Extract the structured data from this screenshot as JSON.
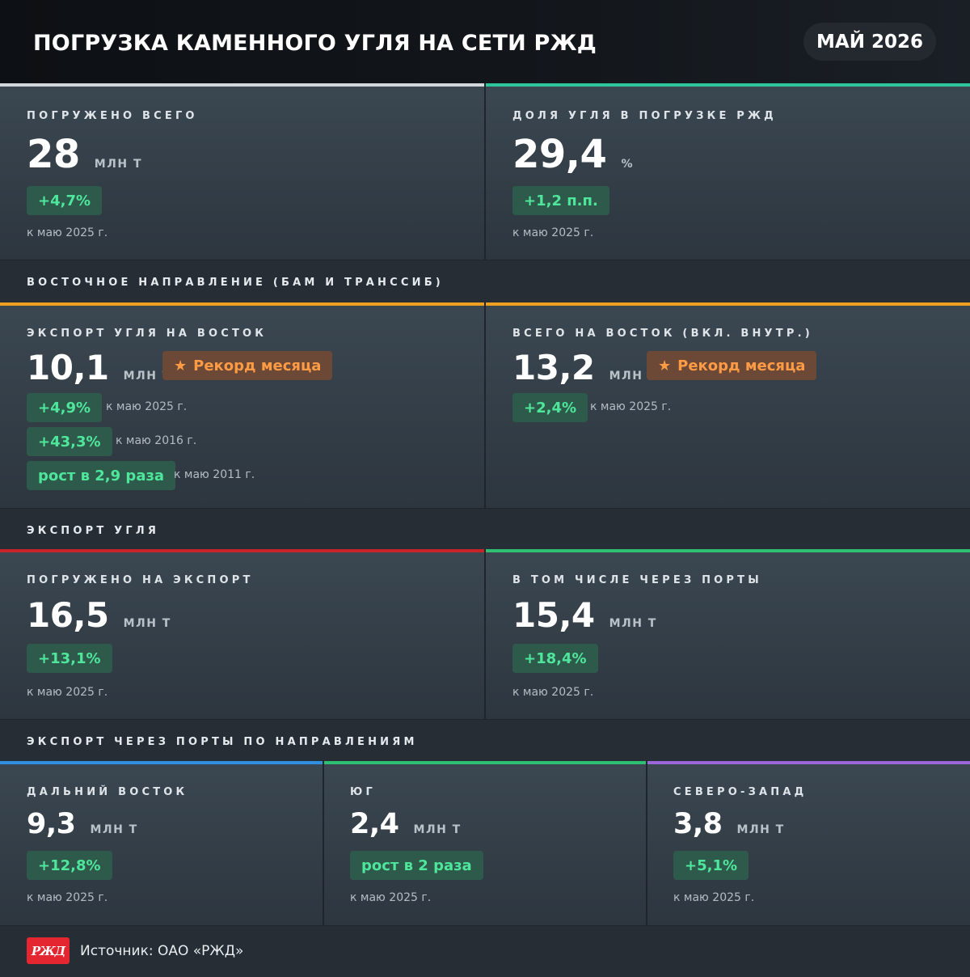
{
  "header": {
    "title": "ПОГРУЗКА КАМЕННОГО УГЛЯ НА СЕТИ РЖД",
    "date": "МАЙ 2026"
  },
  "colors": {
    "white": "#d2d7db",
    "teal": "#2ec59a",
    "orange": "#f0a020",
    "red": "#c8222a",
    "green": "#2fbf73",
    "blue": "#2f8fe0",
    "purple": "#9a66d9",
    "badge_text": "#4ee69b",
    "record_text": "#ff9b45"
  },
  "cards": {
    "total": {
      "label": "ПОГРУЖЕНО ВСЕГО",
      "value": "28",
      "unit": "МЛН Т",
      "change": "+4,7%",
      "note": "к маю 2025 г."
    },
    "share": {
      "label": "ДОЛЯ УГЛЯ В ПОГРУЗКЕ РЖД",
      "value": "29,4",
      "unit": "%",
      "change": "+1,2 п.п.",
      "note": "к маю 2025 г."
    },
    "export_east": {
      "label": "ЭКСПОРТ УГЛЯ НА ВОСТОК",
      "value": "10,1",
      "unit": "МЛН Т",
      "record": "Рекорд месяца",
      "rows": [
        {
          "change": "+4,9%",
          "note": "к маю 2025 г."
        },
        {
          "change": "+43,3%",
          "note": "к маю 2016 г."
        },
        {
          "change": "рост в 2,9 раза",
          "note": "к маю 2011 г."
        }
      ]
    },
    "total_east": {
      "label": "ВСЕГО НА ВОСТОК (ВКЛ. ВНУТР.)",
      "value": "13,2",
      "unit": "МЛН Т",
      "record": "Рекорд месяца",
      "change": "+2,4%",
      "note": "к маю 2025 г."
    },
    "export": {
      "label": "ПОГРУЖЕНО НА ЭКСПОРТ",
      "value": "16,5",
      "unit": "МЛН Т",
      "change": "+13,1%",
      "note": "к маю 2025 г."
    },
    "ports": {
      "label": "В ТОМ ЧИСЛЕ ЧЕРЕЗ ПОРТЫ",
      "value": "15,4",
      "unit": "МЛН Т",
      "change": "+18,4%",
      "note": "к маю 2025 г."
    },
    "far_east": {
      "label": "ДАЛЬНИЙ ВОСТОК",
      "value": "9,3",
      "unit": "МЛН Т",
      "change": "+12,8%",
      "note": "к маю 2025 г."
    },
    "south": {
      "label": "ЮГ",
      "value": "2,4",
      "unit": "МЛН Т",
      "change": "рост в 2 раза",
      "note": "к маю 2025 г."
    },
    "north_west": {
      "label": "СЕВЕРО-ЗАПАД",
      "value": "3,8",
      "unit": "МЛН Т",
      "change": "+5,1%",
      "note": "к маю 2025 г."
    }
  },
  "sections": {
    "east": "ВОСТОЧНОЕ НАПРАВЛЕНИЕ (БАМ И ТРАНССИБ)",
    "export": "ЭКСПОРТ УГЛЯ",
    "ports": "ЭКСПОРТ ЧЕРЕЗ ПОРТЫ ПО НАПРАВЛЕНИЯМ"
  },
  "footer": {
    "logo_text": "РЖД",
    "source": "Источник: ОАО «РЖД»"
  }
}
